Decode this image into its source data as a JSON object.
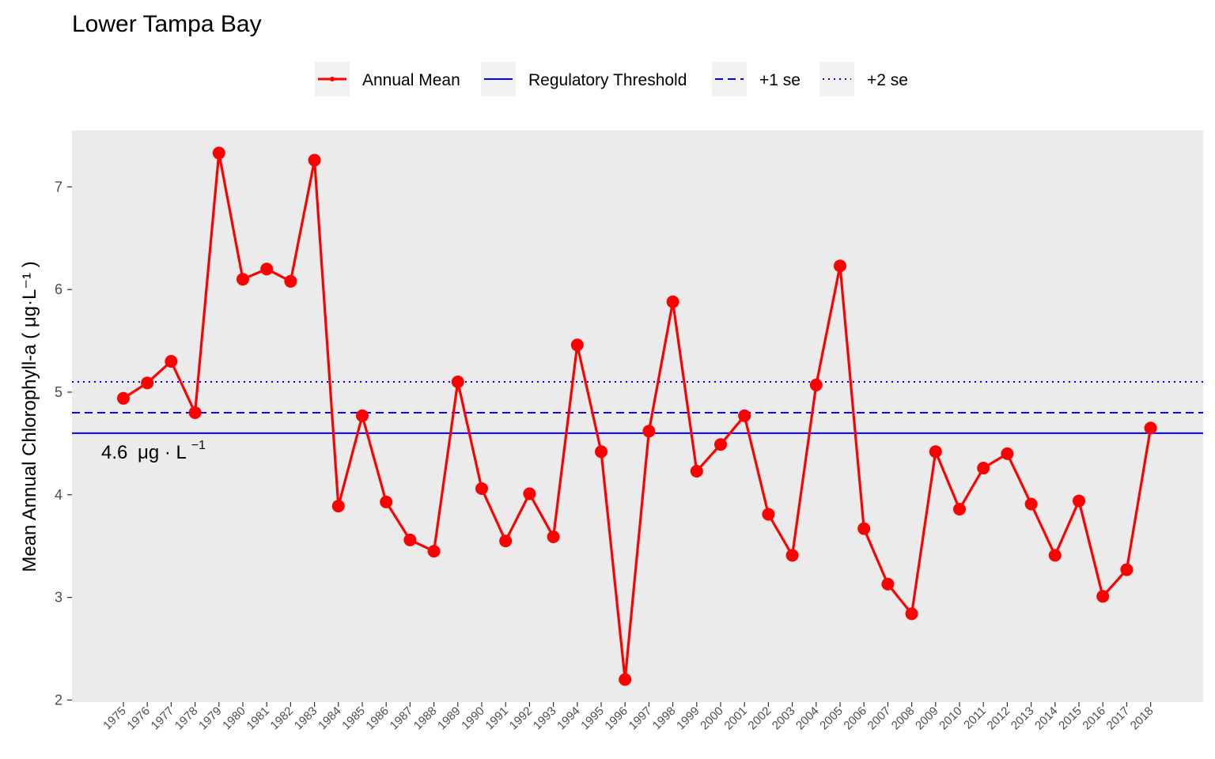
{
  "chart_data": {
    "type": "line",
    "title": "Lower Tampa Bay",
    "ylabel": "Mean Annual Chlorophyll-a ( μg·L⁻¹ )",
    "xlabel": "",
    "ylim": [
      1.98,
      7.55
    ],
    "yticks": [
      2,
      3,
      4,
      5,
      6,
      7
    ],
    "grid": false,
    "legend_position": "top",
    "x": [
      "1975",
      "1976",
      "1977",
      "1978",
      "1979",
      "1980",
      "1981",
      "1982",
      "1983",
      "1984",
      "1985",
      "1986",
      "1987",
      "1988",
      "1989",
      "1990",
      "1991",
      "1992",
      "1993",
      "1994",
      "1995",
      "1996",
      "1997",
      "1998",
      "1999",
      "2000",
      "2001",
      "2002",
      "2003",
      "2004",
      "2005",
      "2006",
      "2007",
      "2008",
      "2009",
      "2010",
      "2011",
      "2012",
      "2013",
      "2014",
      "2015",
      "2016",
      "2017",
      "2018"
    ],
    "series": [
      {
        "name": "Annual Mean",
        "color": "#ff0000",
        "values": [
          4.94,
          5.09,
          5.3,
          4.8,
          7.33,
          6.1,
          6.2,
          6.08,
          7.26,
          3.89,
          4.77,
          3.93,
          3.56,
          3.45,
          5.1,
          4.06,
          3.55,
          4.01,
          3.59,
          5.46,
          4.42,
          2.2,
          4.62,
          5.88,
          4.23,
          4.49,
          4.77,
          3.81,
          3.41,
          5.07,
          6.23,
          3.67,
          3.13,
          2.84,
          4.42,
          3.86,
          4.26,
          4.4,
          3.91,
          3.41,
          3.94,
          3.01,
          3.27,
          4.65
        ]
      }
    ],
    "reference_lines": [
      {
        "name": "Regulatory Threshold",
        "value": 4.6,
        "color": "#0000ff",
        "style": "solid"
      },
      {
        "name": "+1 se",
        "value": 4.8,
        "color": "#0000ff",
        "style": "dashed"
      },
      {
        "name": "+2 se",
        "value": 5.1,
        "color": "#0000ff",
        "style": "dotted"
      }
    ],
    "annotation": {
      "num": "4.6",
      "unit": "μg · L",
      "exp": "−1"
    },
    "colors": {
      "panel_background": "#ebebeb",
      "legend_key_background": "#f2f2f2",
      "tick_text": "#4d4d4d"
    }
  }
}
